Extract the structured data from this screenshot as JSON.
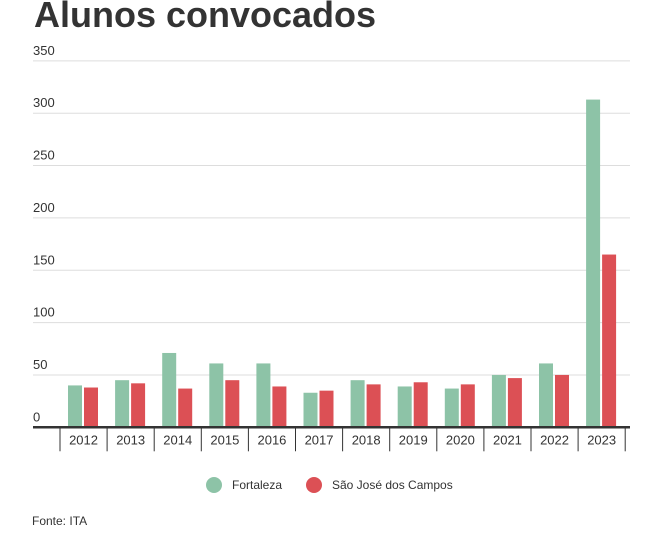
{
  "chart_data": {
    "type": "bar",
    "title": "Alunos convocados",
    "source": "Fonte: ITA",
    "categories": [
      "2012",
      "2013",
      "2014",
      "2015",
      "2016",
      "2017",
      "2018",
      "2019",
      "2020",
      "2021",
      "2022",
      "2023"
    ],
    "series": [
      {
        "name": "Fortaleza",
        "color": "#8dc3a7",
        "values": [
          40,
          45,
          71,
          61,
          61,
          33,
          45,
          39,
          37,
          50,
          61,
          313
        ]
      },
      {
        "name": "São José dos Campos",
        "color": "#dc5055",
        "values": [
          38,
          42,
          37,
          45,
          39,
          35,
          41,
          43,
          41,
          47,
          50,
          165
        ]
      }
    ],
    "ylim": [
      0,
      350
    ],
    "yticks": [
      0,
      50,
      100,
      150,
      200,
      250,
      300,
      350
    ],
    "grid": true,
    "legend": "bottom"
  }
}
